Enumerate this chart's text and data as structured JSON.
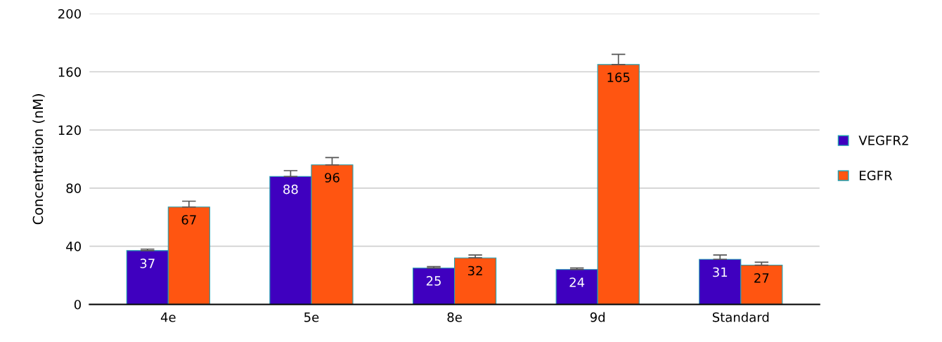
{
  "chart_data": {
    "type": "bar",
    "ylabel": "Concentration (nM)",
    "categories": [
      "4e",
      "5e",
      "8e",
      "9d",
      "Standard"
    ],
    "series": [
      {
        "name": "VEGFR2",
        "color": "#3f00bf",
        "values": [
          37,
          88,
          25,
          24,
          31
        ],
        "errors": [
          [
            37,
            38
          ],
          [
            88,
            92
          ],
          [
            25,
            26
          ],
          [
            24,
            25
          ],
          [
            31,
            34
          ]
        ]
      },
      {
        "name": "EGFR",
        "color": "#ff5511",
        "values": [
          67,
          96,
          32,
          165,
          27
        ],
        "errors": [
          [
            67,
            71
          ],
          [
            96,
            101
          ],
          [
            32,
            34
          ],
          [
            165,
            172
          ],
          [
            27,
            29
          ]
        ]
      }
    ],
    "ylim": [
      0,
      200
    ],
    "yticks": [
      0,
      40,
      80,
      120,
      160,
      200
    ],
    "grid": "y",
    "legend": "right",
    "data_labels": true
  }
}
